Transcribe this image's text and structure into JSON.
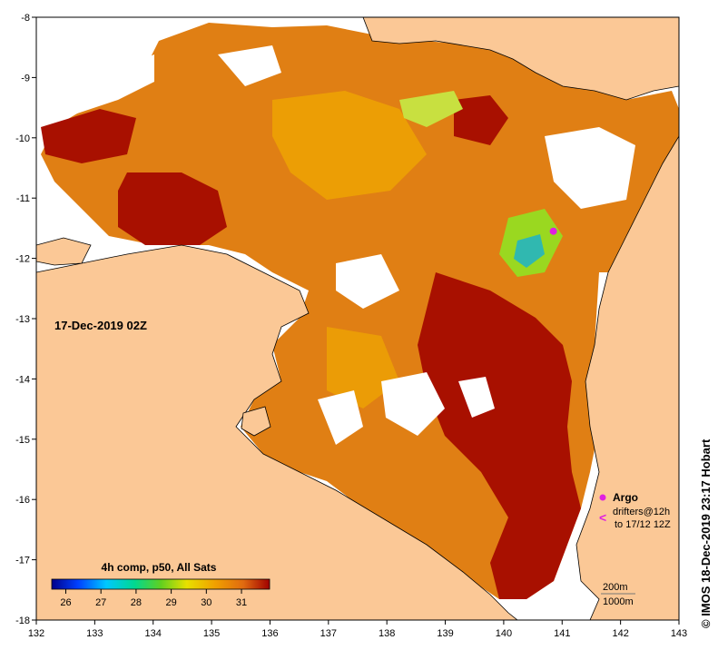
{
  "map": {
    "timestamp_label": "17-Dec-2019 02Z",
    "credit": "© IMOS 18-Dec-2019 23:17 Hobart",
    "x_axis": {
      "range": [
        132,
        143
      ],
      "ticks": [
        "132",
        "133",
        "134",
        "135",
        "136",
        "137",
        "138",
        "139",
        "140",
        "141",
        "142",
        "143"
      ]
    },
    "y_axis": {
      "range": [
        -18,
        -8
      ],
      "ticks": [
        "-8",
        "-9",
        "-10",
        "-11",
        "-12",
        "-13",
        "-14",
        "-15",
        "-16",
        "-17",
        "-18"
      ]
    }
  },
  "colorbar": {
    "title": "4h comp, p50, All Sats",
    "ticks": [
      "26",
      "27",
      "28",
      "29",
      "30",
      "31"
    ],
    "range": [
      25.6,
      31.8
    ]
  },
  "legend": {
    "argo_label": "Argo",
    "drifters_label": "drifters@12h",
    "drifters_sub": "to 17/12 12Z"
  },
  "scale": {
    "isobath_200": "200m",
    "isobath_1000": "1000m"
  },
  "colors": {
    "land": "#fbc896",
    "sst_warm": "#e07f14",
    "sst_hot": "#a81000",
    "sst_mid": "#f0a800",
    "sst_cool": "#9ad820",
    "argo": "#e020e0"
  },
  "argo_floats": [
    {
      "lon": 140.85,
      "lat": -11.55
    }
  ]
}
